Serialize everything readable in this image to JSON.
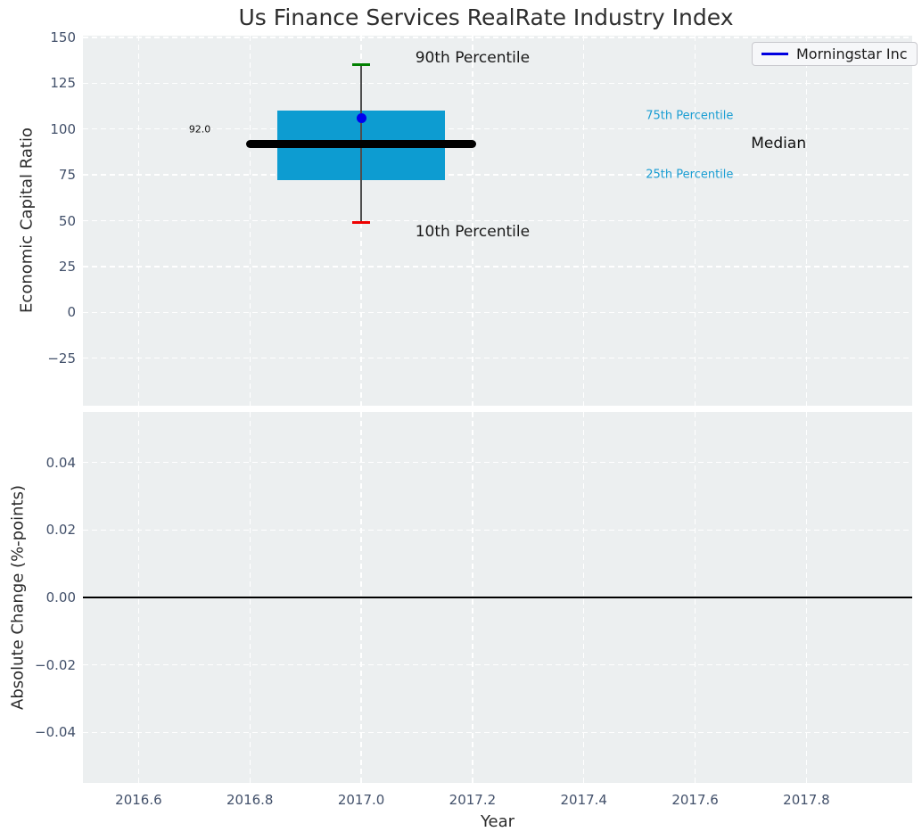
{
  "title": "Us Finance Services RealRate Industry Index",
  "colors": {
    "figure_bg": "#ffffff",
    "plot_bg": "#eceff0",
    "grid": "#ffffff",
    "tick_label": "#42506a",
    "axis_label": "#2b2b2b",
    "box_fill": "#0d9cd1",
    "median_line": "#000000",
    "whisker": "#4d4d4d",
    "cap_upper_green": "#008000",
    "cap_lower_red": "#ee0000",
    "company_dot_blue": "#0000ee",
    "legend_line_blue": "#0000e0",
    "percentile_text_cyan": "#1b9ed3",
    "zero_line": "#000000"
  },
  "chart_data": [
    {
      "type": "boxplot",
      "panel": "top",
      "ylabel": "Economic Capital Ratio",
      "ylim": [
        -51,
        151
      ],
      "yticks": [
        150,
        125,
        100,
        75,
        50,
        25,
        0,
        -25
      ],
      "ytick_labels": [
        "150",
        "125",
        "100",
        "75",
        "50",
        "25",
        "0",
        "−25"
      ],
      "xlim": [
        2016.5,
        2017.99
      ],
      "grid": true,
      "legend": {
        "label": "Morningstar Inc",
        "position": "upper right"
      },
      "box": {
        "x": 2017.0,
        "p10": 49,
        "q1": 72,
        "median": 92.0,
        "q3": 110,
        "p90": 135,
        "box_half_width": 0.15,
        "median_half_width": 0.2,
        "cap_half_width": 0.016
      },
      "series": [
        {
          "name": "Morningstar Inc",
          "type": "scatter",
          "x": [
            2017.0
          ],
          "y": [
            106
          ]
        }
      ],
      "annotations": [
        {
          "text": "90th Percentile",
          "x": 2017.2,
          "y": 139,
          "size": 17,
          "color": "#1a1a1a"
        },
        {
          "text": "10th Percentile",
          "x": 2017.2,
          "y": 44,
          "size": 17,
          "color": "#1a1a1a"
        },
        {
          "text": "75th Percentile",
          "x": 2017.59,
          "y": 107,
          "size": 13,
          "color": "#1b9ed3"
        },
        {
          "text": "25th Percentile",
          "x": 2017.59,
          "y": 75,
          "size": 13,
          "color": "#1b9ed3"
        },
        {
          "text": "Median",
          "x": 2017.75,
          "y": 92,
          "size": 17,
          "color": "#111111"
        },
        {
          "text": "92.0",
          "x": 2016.71,
          "y": 100,
          "size": 11,
          "color": "#111111"
        }
      ]
    },
    {
      "type": "line",
      "panel": "bottom",
      "ylabel": "Absolute Change (%-points)",
      "xlabel": "Year",
      "ylim": [
        -0.055,
        0.055
      ],
      "yticks": [
        0.04,
        0.02,
        0,
        -0.02,
        -0.04
      ],
      "ytick_labels": [
        "0.04",
        "0.02",
        "0.00",
        "−0.02",
        "−0.04"
      ],
      "xticks": [
        2016.6,
        2016.8,
        2017.0,
        2017.2,
        2017.4,
        2017.6,
        2017.8
      ],
      "xtick_labels": [
        "2016.6",
        "2016.8",
        "2017.0",
        "2017.2",
        "2017.4",
        "2017.6",
        "2017.8"
      ],
      "zero_line": 0.0,
      "grid": true
    }
  ]
}
